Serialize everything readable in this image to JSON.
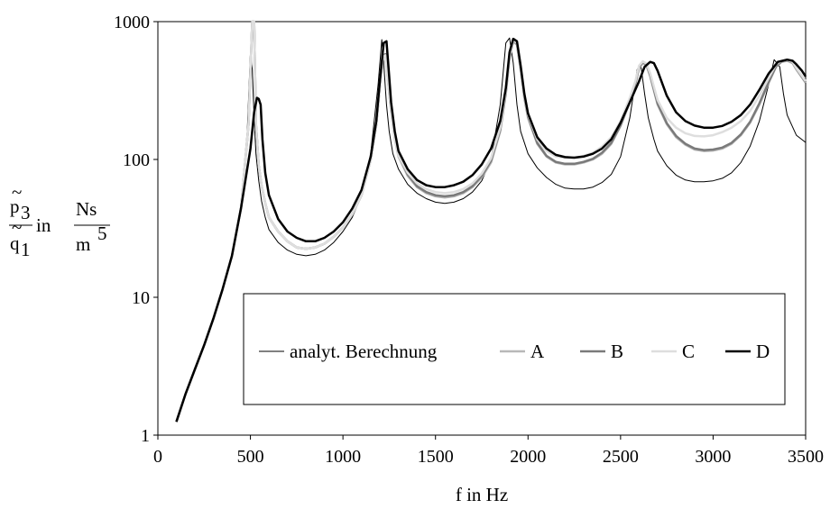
{
  "chart_data": {
    "type": "line",
    "title": "",
    "xlabel": "f in Hz",
    "ylabel": {
      "numerator": "p",
      "numerator_sub": "3",
      "denominator": "q",
      "denominator_sub": "1",
      "connector": "in",
      "unit_numerator": "Ns",
      "unit_denominator": "m",
      "unit_denominator_sup": "5"
    },
    "xlim": [
      0,
      3500
    ],
    "ylim": [
      1,
      1000
    ],
    "yscale": "log",
    "xticks": [
      "0",
      "500",
      "1000",
      "1500",
      "2000",
      "2500",
      "3000",
      "3500"
    ],
    "yticks": [
      "1",
      "10",
      "100",
      "1000"
    ],
    "grid": false,
    "legend_position": "center-right",
    "series": [
      {
        "name": "analyt. Berechnung",
        "color": "#000000",
        "width": 1,
        "x": [
          100,
          150,
          200,
          250,
          300,
          350,
          400,
          450,
          480,
          500,
          510,
          520,
          530,
          545,
          560,
          580,
          600,
          650,
          700,
          750,
          800,
          850,
          900,
          950,
          1000,
          1050,
          1100,
          1150,
          1190,
          1210,
          1220,
          1235,
          1250,
          1270,
          1300,
          1350,
          1400,
          1450,
          1500,
          1550,
          1600,
          1650,
          1700,
          1750,
          1800,
          1850,
          1880,
          1900,
          1920,
          1940,
          1960,
          2000,
          2050,
          2100,
          2150,
          2200,
          2250,
          2300,
          2350,
          2400,
          2450,
          2500,
          2550,
          2590,
          2610,
          2630,
          2650,
          2680,
          2700,
          2750,
          2800,
          2850,
          2900,
          2950,
          3000,
          3050,
          3100,
          3150,
          3200,
          3250,
          3300,
          3330,
          3360,
          3380,
          3400,
          3450,
          3500
        ],
        "y": [
          1.25,
          2.0,
          3.0,
          4.5,
          7.0,
          11.5,
          20,
          45,
          130,
          600,
          450,
          200,
          110,
          70,
          50,
          38,
          31,
          25,
          22,
          20.5,
          20,
          20.5,
          22,
          25,
          30,
          38,
          55,
          110,
          350,
          740,
          500,
          250,
          160,
          110,
          85,
          66,
          57,
          52,
          49,
          48,
          49,
          52,
          58,
          70,
          100,
          250,
          700,
          760,
          500,
          250,
          160,
          110,
          87,
          74,
          66,
          62,
          61,
          61,
          63,
          68,
          78,
          105,
          200,
          450,
          480,
          300,
          200,
          140,
          115,
          90,
          77,
          71,
          69,
          69,
          70,
          73,
          80,
          95,
          125,
          190,
          350,
          530,
          470,
          300,
          210,
          150,
          133
        ]
      },
      {
        "name": "A",
        "color": "#b8b8b8",
        "width": 2.5,
        "x": [
          100,
          150,
          200,
          250,
          300,
          350,
          400,
          450,
          490,
          510,
          520,
          530,
          545,
          560,
          580,
          600,
          650,
          700,
          750,
          800,
          850,
          900,
          950,
          1000,
          1050,
          1100,
          1150,
          1180,
          1200,
          1215,
          1230,
          1245,
          1260,
          1280,
          1300,
          1350,
          1400,
          1450,
          1500,
          1550,
          1600,
          1650,
          1700,
          1750,
          1800,
          1850,
          1880,
          1900,
          1920,
          1940,
          1960,
          1980,
          2000,
          2050,
          2100,
          2150,
          2200,
          2250,
          2300,
          2350,
          2400,
          2450,
          2500,
          2550,
          2580,
          2600,
          2620,
          2640,
          2660,
          2700,
          2750,
          2800,
          2850,
          2900,
          2950,
          3000,
          3050,
          3100,
          3150,
          3200,
          3250,
          3300,
          3340,
          3370,
          3400,
          3430,
          3450,
          3500
        ],
        "y": [
          1.25,
          2.0,
          3.0,
          4.5,
          7.0,
          11.5,
          20,
          45,
          180,
          1000,
          1000,
          180,
          90,
          65,
          48,
          38,
          30,
          25.5,
          23,
          22.5,
          23,
          24.5,
          27.5,
          32,
          40,
          55,
          100,
          180,
          350,
          550,
          560,
          350,
          220,
          140,
          105,
          76,
          63,
          57,
          54,
          53,
          54,
          57,
          63,
          74,
          95,
          160,
          300,
          550,
          720,
          680,
          450,
          280,
          200,
          130,
          105,
          95,
          92,
          92,
          95,
          100,
          110,
          130,
          175,
          260,
          350,
          460,
          500,
          480,
          400,
          250,
          180,
          145,
          128,
          118,
          115,
          116,
          120,
          130,
          150,
          185,
          250,
          360,
          470,
          510,
          520,
          500,
          450,
          360
        ]
      },
      {
        "name": "B",
        "color": "#7a7a7a",
        "width": 2.5,
        "x": [
          100,
          150,
          200,
          250,
          300,
          350,
          400,
          450,
          490,
          510,
          520,
          530,
          545,
          560,
          580,
          600,
          650,
          700,
          750,
          800,
          850,
          900,
          950,
          1000,
          1050,
          1100,
          1150,
          1180,
          1200,
          1215,
          1230,
          1245,
          1260,
          1280,
          1300,
          1350,
          1400,
          1450,
          1500,
          1550,
          1600,
          1650,
          1700,
          1750,
          1800,
          1850,
          1880,
          1900,
          1920,
          1940,
          1960,
          1980,
          2000,
          2050,
          2100,
          2150,
          2200,
          2250,
          2300,
          2350,
          2400,
          2450,
          2500,
          2550,
          2580,
          2600,
          2620,
          2640,
          2660,
          2700,
          2750,
          2800,
          2850,
          2900,
          2950,
          3000,
          3050,
          3100,
          3150,
          3200,
          3250,
          3300,
          3340,
          3370,
          3400,
          3430,
          3450,
          3500
        ],
        "y": [
          1.25,
          2.0,
          3.0,
          4.5,
          7.0,
          11.5,
          20,
          45,
          180,
          1000,
          1000,
          180,
          90,
          65,
          48,
          38,
          30,
          25.5,
          23,
          22.5,
          23,
          24.5,
          27.5,
          32,
          40,
          55,
          100,
          180,
          350,
          570,
          580,
          360,
          225,
          145,
          108,
          78,
          64,
          58,
          55,
          54,
          55,
          58,
          64,
          76,
          98,
          165,
          310,
          560,
          730,
          690,
          460,
          285,
          205,
          132,
          106,
          96,
          93,
          93,
          96,
          101,
          112,
          132,
          178,
          265,
          360,
          470,
          510,
          490,
          410,
          255,
          183,
          148,
          130,
          120,
          117,
          118,
          122,
          132,
          152,
          188,
          255,
          365,
          475,
          515,
          525,
          505,
          455,
          365
        ]
      },
      {
        "name": "C",
        "color": "#dedede",
        "width": 2.5,
        "x": [
          100,
          150,
          200,
          250,
          300,
          350,
          400,
          450,
          490,
          510,
          520,
          530,
          545,
          560,
          580,
          600,
          650,
          700,
          750,
          800,
          850,
          900,
          950,
          1000,
          1050,
          1100,
          1150,
          1180,
          1200,
          1215,
          1230,
          1245,
          1260,
          1280,
          1300,
          1350,
          1400,
          1450,
          1500,
          1550,
          1600,
          1650,
          1700,
          1750,
          1800,
          1850,
          1880,
          1900,
          1920,
          1940,
          1960,
          1980,
          2000,
          2050,
          2100,
          2150,
          2200,
          2250,
          2300,
          2350,
          2400,
          2450,
          2500,
          2550,
          2580,
          2600,
          2620,
          2640,
          2660,
          2700,
          2750,
          2800,
          2850,
          2900,
          2950,
          3000,
          3050,
          3100,
          3150,
          3200,
          3250,
          3300,
          3340,
          3370,
          3400,
          3430,
          3450,
          3500
        ],
        "y": [
          1.25,
          2.0,
          3.0,
          4.5,
          7.0,
          11.5,
          20,
          45,
          180,
          1000,
          1000,
          180,
          90,
          65,
          48,
          38,
          30,
          25.5,
          23,
          22.5,
          23,
          24.5,
          27.5,
          32,
          40,
          55,
          100,
          180,
          350,
          560,
          570,
          355,
          222,
          142,
          107,
          80,
          67,
          61,
          58,
          57,
          58,
          61,
          67,
          79,
          102,
          170,
          320,
          570,
          735,
          700,
          470,
          290,
          210,
          140,
          115,
          105,
          103,
          103,
          106,
          112,
          124,
          145,
          190,
          280,
          370,
          480,
          515,
          495,
          420,
          270,
          200,
          170,
          155,
          148,
          147,
          150,
          158,
          170,
          190,
          225,
          290,
          390,
          490,
          520,
          528,
          508,
          460,
          370
        ]
      },
      {
        "name": "D",
        "color": "#000000",
        "width": 2.5,
        "x": [
          100,
          150,
          200,
          250,
          300,
          350,
          400,
          450,
          500,
          520,
          535,
          545,
          555,
          565,
          580,
          600,
          650,
          700,
          750,
          800,
          850,
          900,
          950,
          1000,
          1050,
          1100,
          1150,
          1180,
          1200,
          1220,
          1235,
          1250,
          1260,
          1280,
          1300,
          1350,
          1400,
          1450,
          1500,
          1550,
          1600,
          1650,
          1700,
          1750,
          1800,
          1850,
          1880,
          1900,
          1920,
          1940,
          1960,
          1980,
          2000,
          2050,
          2100,
          2150,
          2200,
          2250,
          2300,
          2350,
          2400,
          2450,
          2500,
          2550,
          2600,
          2630,
          2660,
          2680,
          2700,
          2750,
          2800,
          2850,
          2900,
          2950,
          3000,
          3050,
          3100,
          3150,
          3200,
          3250,
          3300,
          3350,
          3400,
          3430,
          3450,
          3480,
          3500
        ],
        "y": [
          1.25,
          2.0,
          3.0,
          4.5,
          7.0,
          11.5,
          20,
          45,
          120,
          220,
          280,
          275,
          250,
          140,
          80,
          55,
          37,
          30,
          27,
          25.5,
          25.5,
          27,
          30,
          35,
          44,
          60,
          105,
          190,
          380,
          700,
          720,
          400,
          260,
          160,
          115,
          85,
          71,
          65,
          63,
          63,
          65,
          69,
          77,
          92,
          120,
          190,
          330,
          600,
          750,
          720,
          480,
          300,
          215,
          145,
          120,
          108,
          104,
          103,
          105,
          110,
          120,
          140,
          185,
          260,
          370,
          470,
          510,
          500,
          440,
          290,
          220,
          190,
          176,
          170,
          170,
          175,
          188,
          210,
          250,
          320,
          420,
          510,
          530,
          520,
          490,
          440,
          400
        ]
      }
    ]
  }
}
